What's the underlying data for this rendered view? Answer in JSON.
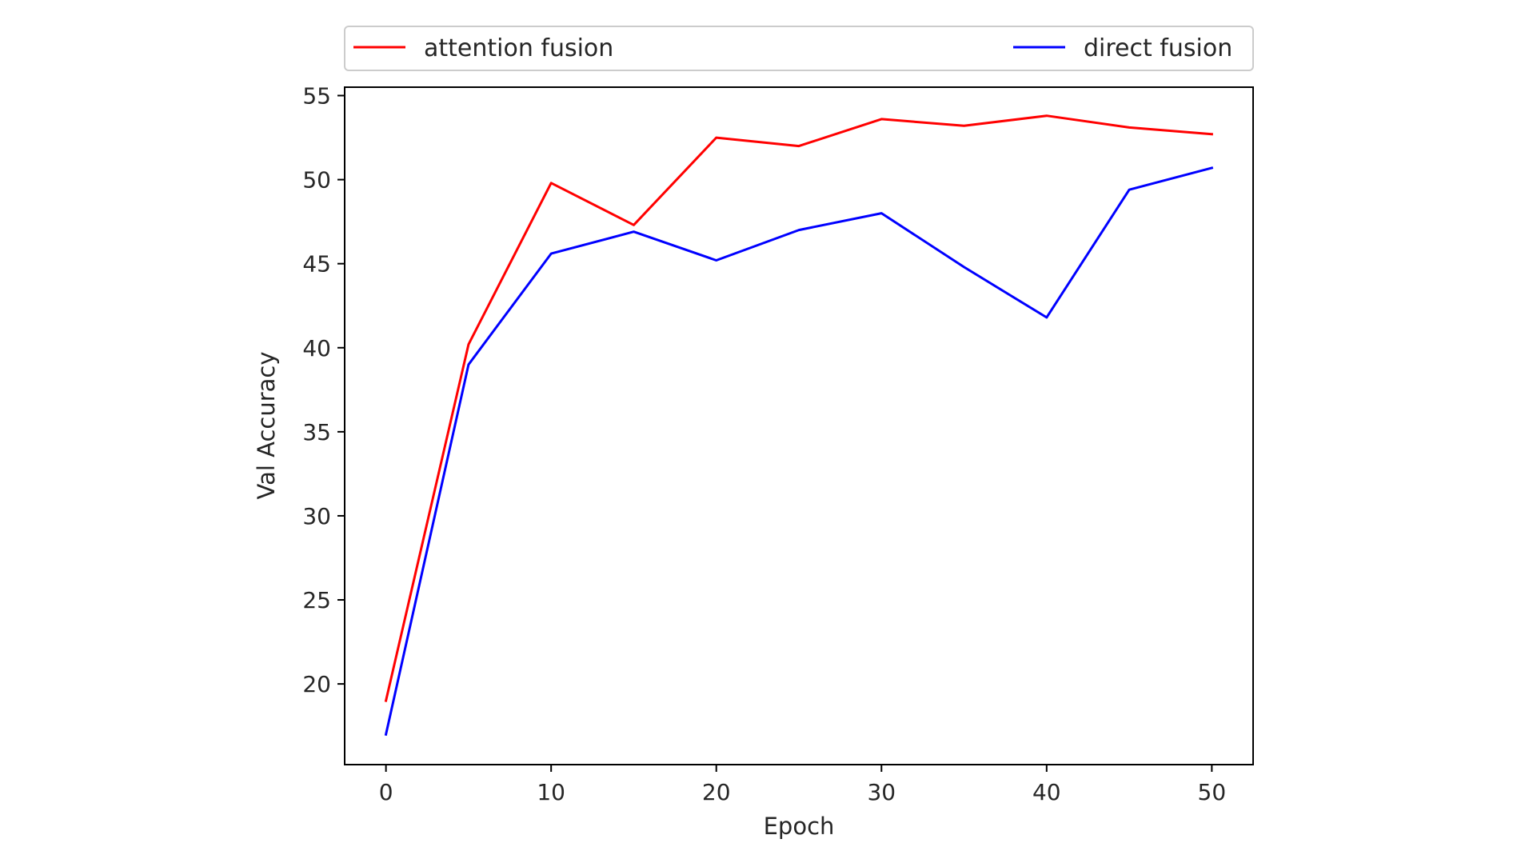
{
  "chart_data": {
    "type": "line",
    "title": "",
    "xlabel": "Epoch",
    "ylabel": "Val Accuracy",
    "x": [
      0,
      5,
      10,
      15,
      20,
      25,
      30,
      35,
      40,
      45,
      50
    ],
    "series": [
      {
        "name": "attention fusion",
        "color": "#ff0000",
        "values": [
          19.0,
          40.2,
          49.8,
          47.3,
          52.5,
          52.0,
          53.6,
          53.2,
          53.8,
          53.1,
          52.7
        ]
      },
      {
        "name": "direct fusion",
        "color": "#0000ff",
        "values": [
          17.0,
          39.0,
          45.6,
          46.9,
          45.2,
          47.0,
          48.0,
          44.8,
          41.8,
          49.4,
          50.7
        ]
      }
    ],
    "xlim": [
      -2.5,
      52.5
    ],
    "ylim": [
      15.2,
      55.5
    ],
    "xticks": [
      0,
      10,
      20,
      30,
      40,
      50
    ],
    "yticks": [
      20,
      25,
      30,
      35,
      40,
      45,
      50,
      55
    ],
    "grid": false,
    "legend_position": "above plot, two columns"
  }
}
